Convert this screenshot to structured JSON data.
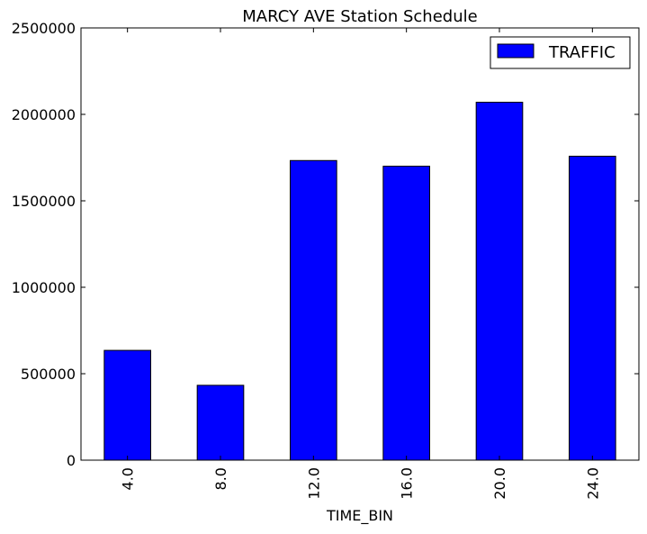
{
  "chart_data": {
    "type": "bar",
    "title": "MARCY AVE Station Schedule",
    "xlabel": "TIME_BIN",
    "ylabel": "",
    "categories": [
      "4.0",
      "8.0",
      "12.0",
      "16.0",
      "20.0",
      "24.0"
    ],
    "series": [
      {
        "name": "TRAFFIC",
        "values": [
          635000,
          433000,
          1733000,
          1700000,
          2070000,
          1758000
        ],
        "color": "#0000ff"
      }
    ],
    "ylim": [
      0,
      2500000
    ],
    "yticks": [
      0,
      500000,
      1000000,
      1500000,
      2000000,
      2500000
    ],
    "grid": false,
    "legend_position": "top-right"
  }
}
